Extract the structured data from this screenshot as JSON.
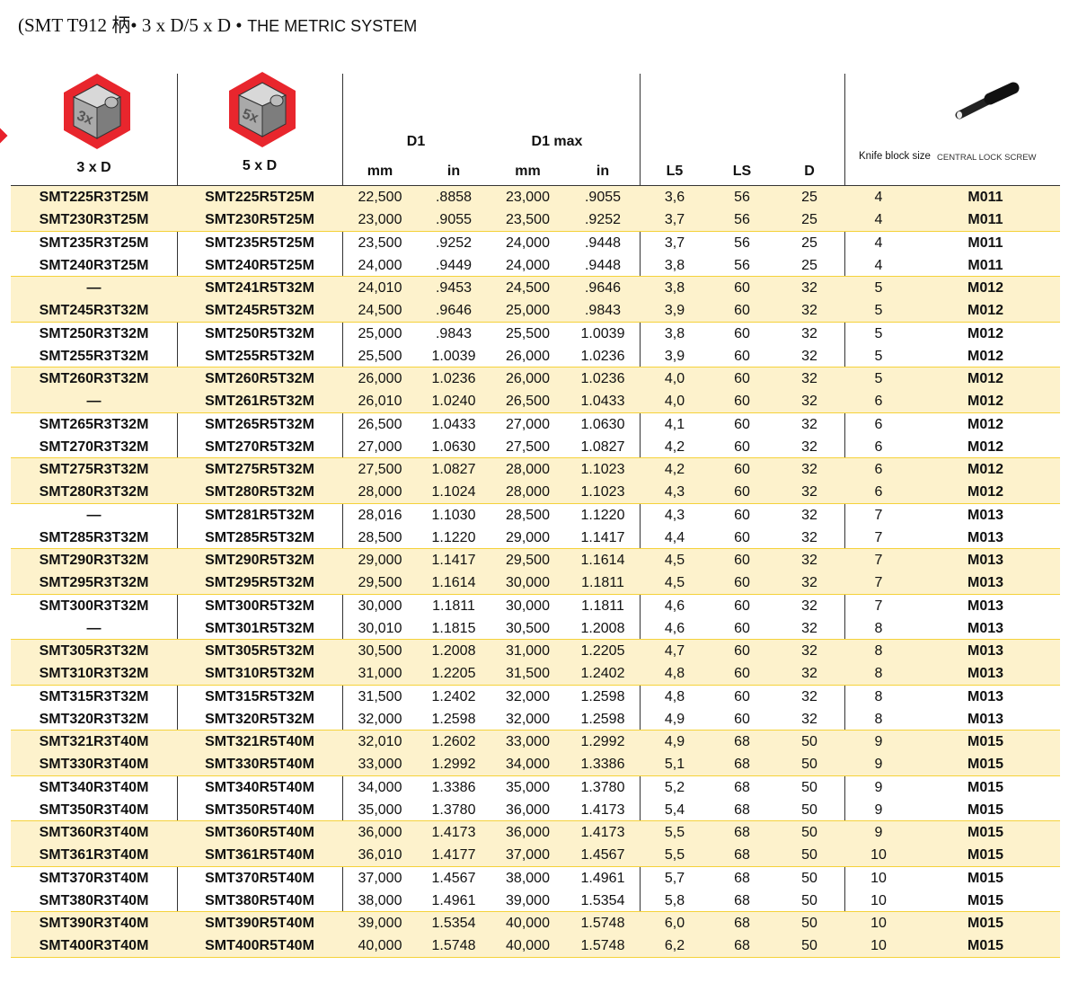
{
  "title": {
    "part1": "(SMT T912 柄• 3 x D/5 x D •",
    "part2": "THE METRIC SYSTEM"
  },
  "header": {
    "col_3xd": "3 x D",
    "icon_3x": "3x",
    "col_5xd": "5 x D",
    "icon_5x": "5x",
    "d1": "D1",
    "d1max": "D1 max",
    "mm": "mm",
    "in": "in",
    "l5": "L5",
    "ls": "LS",
    "d": "D",
    "knife_block_size": "Knife block size",
    "central_lock_screw": "CENTRAL LOCK SCREW"
  },
  "colors": {
    "shade": "#fdf2cc",
    "separator": "#f5d23a",
    "hex_red": "#e8262d"
  },
  "rows": [
    [
      "SMT225R3T25M",
      "SMT225R5T25M",
      "22,500",
      ".8858",
      "23,000",
      ".9055",
      "3,6",
      "56",
      "25",
      "4",
      "M011"
    ],
    [
      "SMT230R3T25M",
      "SMT230R5T25M",
      "23,000",
      ".9055",
      "23,500",
      ".9252",
      "3,7",
      "56",
      "25",
      "4",
      "M011"
    ],
    [
      "SMT235R3T25M",
      "SMT235R5T25M",
      "23,500",
      ".9252",
      "24,000",
      ".9448",
      "3,7",
      "56",
      "25",
      "4",
      "M011"
    ],
    [
      "SMT240R3T25M",
      "SMT240R5T25M",
      "24,000",
      ".9449",
      "24,000",
      ".9448",
      "3,8",
      "56",
      "25",
      "4",
      "M011"
    ],
    [
      "—",
      "SMT241R5T32M",
      "24,010",
      ".9453",
      "24,500",
      ".9646",
      "3,8",
      "60",
      "32",
      "5",
      "M012"
    ],
    [
      "SMT245R3T32M",
      "SMT245R5T32M",
      "24,500",
      ".9646",
      "25,000",
      ".9843",
      "3,9",
      "60",
      "32",
      "5",
      "M012"
    ],
    [
      "SMT250R3T32M",
      "SMT250R5T32M",
      "25,000",
      ".9843",
      "25,500",
      "1.0039",
      "3,8",
      "60",
      "32",
      "5",
      "M012"
    ],
    [
      "SMT255R3T32M",
      "SMT255R5T32M",
      "25,500",
      "1.0039",
      "26,000",
      "1.0236",
      "3,9",
      "60",
      "32",
      "5",
      "M012"
    ],
    [
      "SMT260R3T32M",
      "SMT260R5T32M",
      "26,000",
      "1.0236",
      "26,000",
      "1.0236",
      "4,0",
      "60",
      "32",
      "5",
      "M012"
    ],
    [
      "—",
      "SMT261R5T32M",
      "26,010",
      "1.0240",
      "26,500",
      "1.0433",
      "4,0",
      "60",
      "32",
      "6",
      "M012"
    ],
    [
      "SMT265R3T32M",
      "SMT265R5T32M",
      "26,500",
      "1.0433",
      "27,000",
      "1.0630",
      "4,1",
      "60",
      "32",
      "6",
      "M012"
    ],
    [
      "SMT270R3T32M",
      "SMT270R5T32M",
      "27,000",
      "1.0630",
      "27,500",
      "1.0827",
      "4,2",
      "60",
      "32",
      "6",
      "M012"
    ],
    [
      "SMT275R3T32M",
      "SMT275R5T32M",
      "27,500",
      "1.0827",
      "28,000",
      "1.1023",
      "4,2",
      "60",
      "32",
      "6",
      "M012"
    ],
    [
      "SMT280R3T32M",
      "SMT280R5T32M",
      "28,000",
      "1.1024",
      "28,000",
      "1.1023",
      "4,3",
      "60",
      "32",
      "6",
      "M012"
    ],
    [
      "—",
      "SMT281R5T32M",
      "28,016",
      "1.1030",
      "28,500",
      "1.1220",
      "4,3",
      "60",
      "32",
      "7",
      "M013"
    ],
    [
      "SMT285R3T32M",
      "SMT285R5T32M",
      "28,500",
      "1.1220",
      "29,000",
      "1.1417",
      "4,4",
      "60",
      "32",
      "7",
      "M013"
    ],
    [
      "SMT290R3T32M",
      "SMT290R5T32M",
      "29,000",
      "1.1417",
      "29,500",
      "1.1614",
      "4,5",
      "60",
      "32",
      "7",
      "M013"
    ],
    [
      "SMT295R3T32M",
      "SMT295R5T32M",
      "29,500",
      "1.1614",
      "30,000",
      "1.1811",
      "4,5",
      "60",
      "32",
      "7",
      "M013"
    ],
    [
      "SMT300R3T32M",
      "SMT300R5T32M",
      "30,000",
      "1.1811",
      "30,000",
      "1.1811",
      "4,6",
      "60",
      "32",
      "7",
      "M013"
    ],
    [
      "—",
      "SMT301R5T32M",
      "30,010",
      "1.1815",
      "30,500",
      "1.2008",
      "4,6",
      "60",
      "32",
      "8",
      "M013"
    ],
    [
      "SMT305R3T32M",
      "SMT305R5T32M",
      "30,500",
      "1.2008",
      "31,000",
      "1.2205",
      "4,7",
      "60",
      "32",
      "8",
      "M013"
    ],
    [
      "SMT310R3T32M",
      "SMT310R5T32M",
      "31,000",
      "1.2205",
      "31,500",
      "1.2402",
      "4,8",
      "60",
      "32",
      "8",
      "M013"
    ],
    [
      "SMT315R3T32M",
      "SMT315R5T32M",
      "31,500",
      "1.2402",
      "32,000",
      "1.2598",
      "4,8",
      "60",
      "32",
      "8",
      "M013"
    ],
    [
      "SMT320R3T32M",
      "SMT320R5T32M",
      "32,000",
      "1.2598",
      "32,000",
      "1.2598",
      "4,9",
      "60",
      "32",
      "8",
      "M013"
    ],
    [
      "SMT321R3T40M",
      "SMT321R5T40M",
      "32,010",
      "1.2602",
      "33,000",
      "1.2992",
      "4,9",
      "68",
      "50",
      "9",
      "M015"
    ],
    [
      "SMT330R3T40M",
      "SMT330R5T40M",
      "33,000",
      "1.2992",
      "34,000",
      "1.3386",
      "5,1",
      "68",
      "50",
      "9",
      "M015"
    ],
    [
      "SMT340R3T40M",
      "SMT340R5T40M",
      "34,000",
      "1.3386",
      "35,000",
      "1.3780",
      "5,2",
      "68",
      "50",
      "9",
      "M015"
    ],
    [
      "SMT350R3T40M",
      "SMT350R5T40M",
      "35,000",
      "1.3780",
      "36,000",
      "1.4173",
      "5,4",
      "68",
      "50",
      "9",
      "M015"
    ],
    [
      "SMT360R3T40M",
      "SMT360R5T40M",
      "36,000",
      "1.4173",
      "36,000",
      "1.4173",
      "5,5",
      "68",
      "50",
      "9",
      "M015"
    ],
    [
      "SMT361R3T40M",
      "SMT361R5T40M",
      "36,010",
      "1.4177",
      "37,000",
      "1.4567",
      "5,5",
      "68",
      "50",
      "10",
      "M015"
    ],
    [
      "SMT370R3T40M",
      "SMT370R5T40M",
      "37,000",
      "1.4567",
      "38,000",
      "1.4961",
      "5,7",
      "68",
      "50",
      "10",
      "M015"
    ],
    [
      "SMT380R3T40M",
      "SMT380R5T40M",
      "38,000",
      "1.4961",
      "39,000",
      "1.5354",
      "5,8",
      "68",
      "50",
      "10",
      "M015"
    ],
    [
      "SMT390R3T40M",
      "SMT390R5T40M",
      "39,000",
      "1.5354",
      "40,000",
      "1.5748",
      "6,0",
      "68",
      "50",
      "10",
      "M015"
    ],
    [
      "SMT400R3T40M",
      "SMT400R5T40M",
      "40,000",
      "1.5748",
      "40,000",
      "1.5748",
      "6,2",
      "68",
      "50",
      "10",
      "M015"
    ]
  ]
}
